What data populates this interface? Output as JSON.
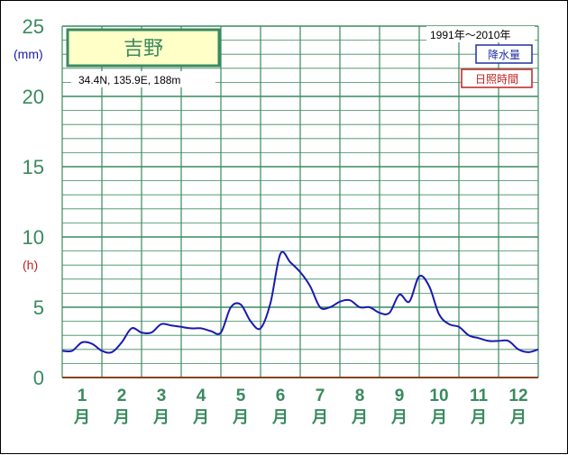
{
  "chart_data": {
    "type": "line",
    "title": "吉野",
    "subtitle": "34.4N, 135.9E, 188m",
    "period": "1991年〜2010年",
    "y_unit_top": "(mm)",
    "y_unit_mid": "(h)",
    "ylim": [
      0,
      25
    ],
    "yticks": [
      "0",
      "5",
      "10",
      "15",
      "20",
      "25"
    ],
    "months": [
      "1",
      "2",
      "3",
      "4",
      "5",
      "6",
      "7",
      "8",
      "9",
      "10",
      "11",
      "12"
    ],
    "month_suffix": "月",
    "legend": [
      {
        "label": "降水量",
        "color": "#2030a0"
      },
      {
        "label": "日照時間",
        "color": "#c02020"
      }
    ],
    "series": [
      {
        "name": "降水量",
        "color": "#1a1ab0",
        "x": [
          0.0,
          0.25,
          0.5,
          0.75,
          1.0,
          1.25,
          1.5,
          1.75,
          2.0,
          2.25,
          2.5,
          2.75,
          3.0,
          3.25,
          3.5,
          3.75,
          4.0,
          4.25,
          4.5,
          4.75,
          5.0,
          5.25,
          5.5,
          5.75,
          6.0,
          6.25,
          6.5,
          6.75,
          7.0,
          7.25,
          7.5,
          7.75,
          8.0,
          8.25,
          8.5,
          8.75,
          9.0,
          9.25,
          9.5,
          9.75,
          10.0,
          10.25,
          10.5,
          10.75,
          11.0,
          11.25,
          11.5,
          11.75,
          12.0
        ],
        "values": [
          1.9,
          1.9,
          2.5,
          2.4,
          1.9,
          1.8,
          2.5,
          3.5,
          3.2,
          3.2,
          3.8,
          3.7,
          3.6,
          3.5,
          3.5,
          3.3,
          3.2,
          5.0,
          5.2,
          4.0,
          3.5,
          5.3,
          8.8,
          8.2,
          7.5,
          6.5,
          5.0,
          5.0,
          5.4,
          5.5,
          5.0,
          5.0,
          4.6,
          4.6,
          5.9,
          5.4,
          7.2,
          6.5,
          4.5,
          3.8,
          3.6,
          3.0,
          2.8,
          2.6,
          2.6,
          2.6,
          2.0,
          1.8,
          2.0
        ]
      }
    ]
  }
}
